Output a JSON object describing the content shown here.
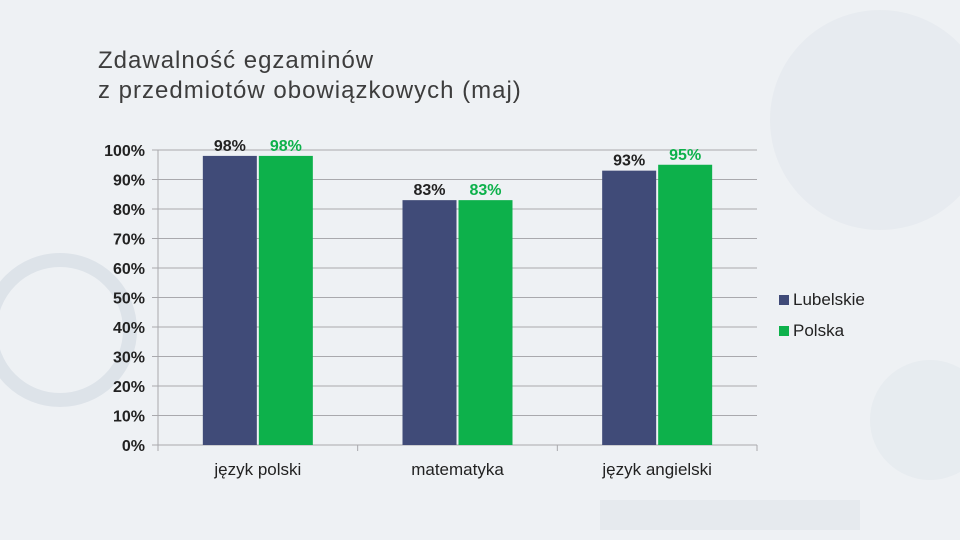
{
  "title_line1": "Zdawalność egzaminów",
  "title_line2": "z przedmiotów obowiązkowych (maj)",
  "colors": {
    "Lubelskie": "#404b78",
    "Polska": "#0db14b",
    "grid": "#a9a9ad",
    "background": "#eef1f4"
  },
  "chart_data": {
    "type": "bar",
    "title": "Zdawalność egzaminów z przedmiotów obowiązkowych (maj)",
    "categories": [
      "język polski",
      "matematyka",
      "język angielski"
    ],
    "series": [
      {
        "name": "Lubelskie",
        "values": [
          98,
          83,
          93
        ],
        "labels": [
          "98%",
          "83%",
          "93%"
        ]
      },
      {
        "name": "Polska",
        "values": [
          98,
          83,
          95
        ],
        "labels": [
          "98%",
          "83%",
          "95%"
        ]
      }
    ],
    "ylim": [
      0,
      100
    ],
    "yticks": [
      "0%",
      "10%",
      "20%",
      "30%",
      "40%",
      "50%",
      "60%",
      "70%",
      "80%",
      "90%",
      "100%"
    ],
    "grid": true,
    "legend_position": "right"
  }
}
